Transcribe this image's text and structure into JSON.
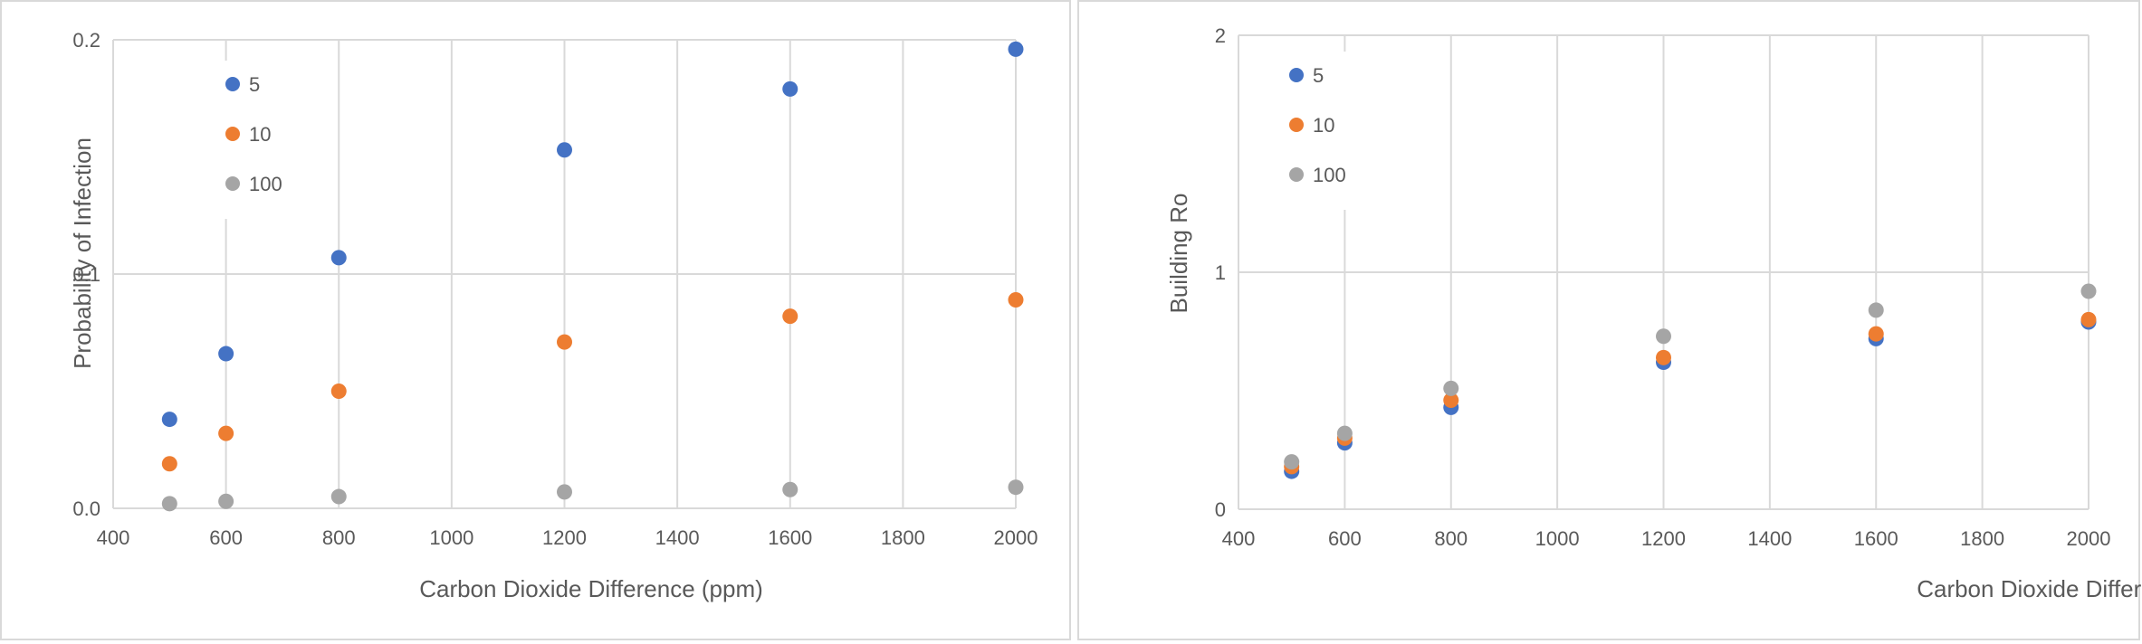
{
  "chart_data": [
    {
      "type": "scatter",
      "title": "",
      "xlabel": "Carbon Dioxide Difference (ppm)",
      "ylabel": "Probability of Infection",
      "xlim": [
        400,
        2000
      ],
      "ylim": [
        0,
        0.2
      ],
      "x_ticks": [
        "400",
        "600",
        "800",
        "1000",
        "1200",
        "1400",
        "1600",
        "1800",
        "2000"
      ],
      "y_ticks": [
        "0.0",
        "0.1",
        "0.2"
      ],
      "grid": true,
      "legend_position": "top-left",
      "series": [
        {
          "name": "5",
          "color": "#4472C4",
          "x": [
            500,
            600,
            800,
            1200,
            1600,
            2000
          ],
          "y": [
            0.038,
            0.066,
            0.107,
            0.153,
            0.179,
            0.196
          ]
        },
        {
          "name": "10",
          "color": "#ED7D31",
          "x": [
            500,
            600,
            800,
            1200,
            1600,
            2000
          ],
          "y": [
            0.019,
            0.032,
            0.05,
            0.071,
            0.082,
            0.089
          ]
        },
        {
          "name": "100",
          "color": "#A5A5A5",
          "x": [
            500,
            600,
            800,
            1200,
            1600,
            2000
          ],
          "y": [
            0.002,
            0.003,
            0.005,
            0.007,
            0.008,
            0.009
          ]
        }
      ]
    },
    {
      "type": "scatter",
      "title": "",
      "xlabel": "Carbon Dioxide Difference (ppm)",
      "ylabel": "Building Ro",
      "xlim": [
        400,
        2000
      ],
      "ylim": [
        0,
        2
      ],
      "x_ticks": [
        "400",
        "600",
        "800",
        "1000",
        "1200",
        "1400",
        "1600",
        "1800",
        "2000"
      ],
      "y_ticks": [
        "0",
        "1",
        "2"
      ],
      "grid": true,
      "legend_position": "top-left",
      "series": [
        {
          "name": "5",
          "color": "#4472C4",
          "x": [
            500,
            600,
            800,
            1200,
            1600,
            2000
          ],
          "y": [
            0.16,
            0.28,
            0.43,
            0.62,
            0.72,
            0.79
          ]
        },
        {
          "name": "10",
          "color": "#ED7D31",
          "x": [
            500,
            600,
            800,
            1200,
            1600,
            2000
          ],
          "y": [
            0.18,
            0.3,
            0.46,
            0.64,
            0.74,
            0.8
          ]
        },
        {
          "name": "100",
          "color": "#A5A5A5",
          "x": [
            500,
            600,
            800,
            1200,
            1600,
            2000
          ],
          "y": [
            0.2,
            0.32,
            0.51,
            0.73,
            0.84,
            0.92
          ]
        }
      ]
    }
  ]
}
